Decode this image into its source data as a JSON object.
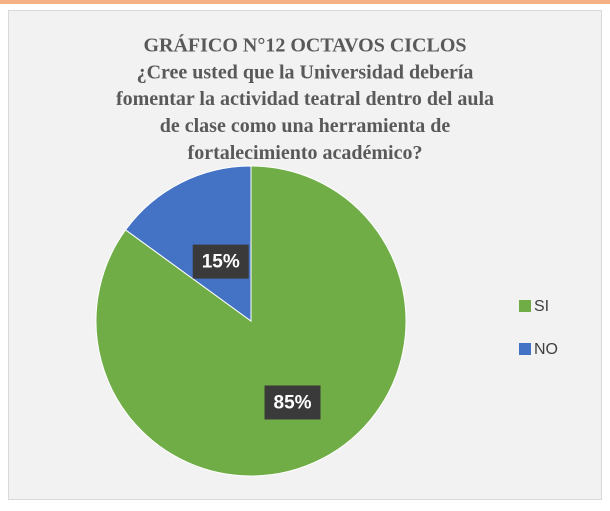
{
  "chart_data": {
    "type": "pie",
    "title": [
      "GRÁFICO  N°12 OCTAVOS CICLOS",
      "¿Cree usted que la Universidad debería",
      "fomentar la actividad teatral dentro del aula",
      "de clase como una herramienta de",
      "fortalecimiento académico?"
    ],
    "categories": [
      "SI",
      "NO"
    ],
    "values": [
      85,
      15
    ],
    "value_labels": [
      "85%",
      "15%"
    ],
    "colors": [
      "#70ad47",
      "#4472c4"
    ],
    "legend": "right"
  }
}
